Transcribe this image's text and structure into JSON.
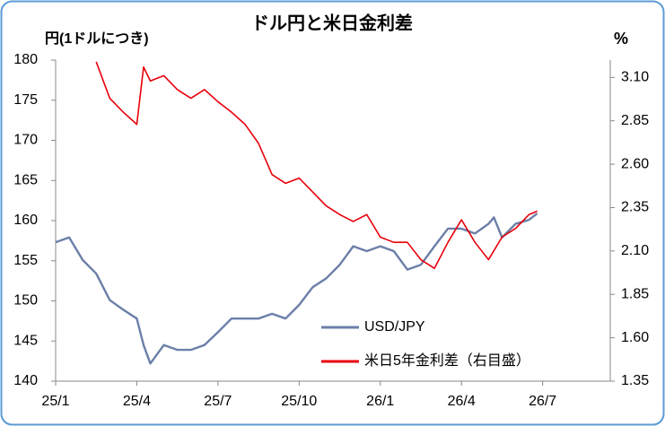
{
  "chart_data": {
    "type": "line",
    "title": "ドル円と米日金利差",
    "y_label": "円(1ドルにつき)",
    "y2_label": "%",
    "xlim": [
      0,
      20.5
    ],
    "xticks": [
      {
        "value": 0,
        "label": "25/1"
      },
      {
        "value": 3,
        "label": "25/4"
      },
      {
        "value": 6,
        "label": "25/7"
      },
      {
        "value": 9,
        "label": "25/10"
      },
      {
        "value": 12,
        "label": "26/1"
      },
      {
        "value": 15,
        "label": "26/4"
      },
      {
        "value": 18,
        "label": "26/7"
      }
    ],
    "ylim": [
      140,
      180
    ],
    "yticks": [
      140,
      145,
      150,
      155,
      160,
      165,
      170,
      175,
      180
    ],
    "y2lim": [
      1.35,
      3.2
    ],
    "y2ticks": [
      {
        "value": 1.35,
        "label": "1.35"
      },
      {
        "value": 1.6,
        "label": "1.60"
      },
      {
        "value": 1.85,
        "label": "1.85"
      },
      {
        "value": 2.1,
        "label": "2.10"
      },
      {
        "value": 2.35,
        "label": "2.35"
      },
      {
        "value": 2.6,
        "label": "2.60"
      },
      {
        "value": 2.85,
        "label": "2.85"
      },
      {
        "value": 3.1,
        "label": "3.10"
      }
    ],
    "series": [
      {
        "name": "USD/JPY",
        "color": "#6b7fa8",
        "x": [
          0,
          0.5,
          1,
          1.5,
          2,
          2.5,
          3,
          3.25,
          3.5,
          4,
          4.5,
          5,
          5.5,
          6,
          6.5,
          7,
          7.5,
          8,
          8.5,
          9,
          9.5,
          10,
          10.5,
          11,
          11.5,
          12,
          12.5,
          13,
          13.5,
          14,
          14.5,
          15,
          15.5,
          16,
          16.2,
          16.5,
          17,
          17.5,
          17.8
        ],
        "values": [
          157.3,
          157.9,
          155.1,
          153.4,
          150.1,
          148.9,
          147.8,
          144.5,
          142.2,
          144.5,
          143.9,
          143.9,
          144.5,
          146.1,
          147.8,
          147.8,
          147.8,
          148.4,
          147.8,
          149.5,
          151.7,
          152.8,
          154.5,
          156.8,
          156.2,
          156.8,
          156.2,
          153.9,
          154.5,
          156.8,
          159.0,
          159.0,
          158.4,
          159.6,
          160.4,
          157.9,
          159.6,
          160.1,
          160.9
        ]
      },
      {
        "name": "米日5年金利差（右目盛）",
        "color": "#e8000b",
        "axis": "y2",
        "x": [
          1.5,
          2,
          2.5,
          3,
          3.25,
          3.5,
          4,
          4.5,
          5,
          5.5,
          6,
          6.5,
          7,
          7.5,
          8,
          8.5,
          9,
          9.5,
          10,
          10.5,
          11,
          11.5,
          12,
          12.5,
          13,
          13.5,
          14,
          14.5,
          15,
          15.5,
          16,
          16.5,
          17,
          17.5,
          17.8
        ],
        "values": [
          3.19,
          2.98,
          2.9,
          2.83,
          3.16,
          3.08,
          3.11,
          3.03,
          2.98,
          3.03,
          2.96,
          2.9,
          2.83,
          2.72,
          2.54,
          2.49,
          2.52,
          2.44,
          2.36,
          2.31,
          2.27,
          2.31,
          2.18,
          2.15,
          2.15,
          2.05,
          2.0,
          2.15,
          2.28,
          2.15,
          2.05,
          2.18,
          2.23,
          2.31,
          2.33
        ]
      }
    ]
  }
}
